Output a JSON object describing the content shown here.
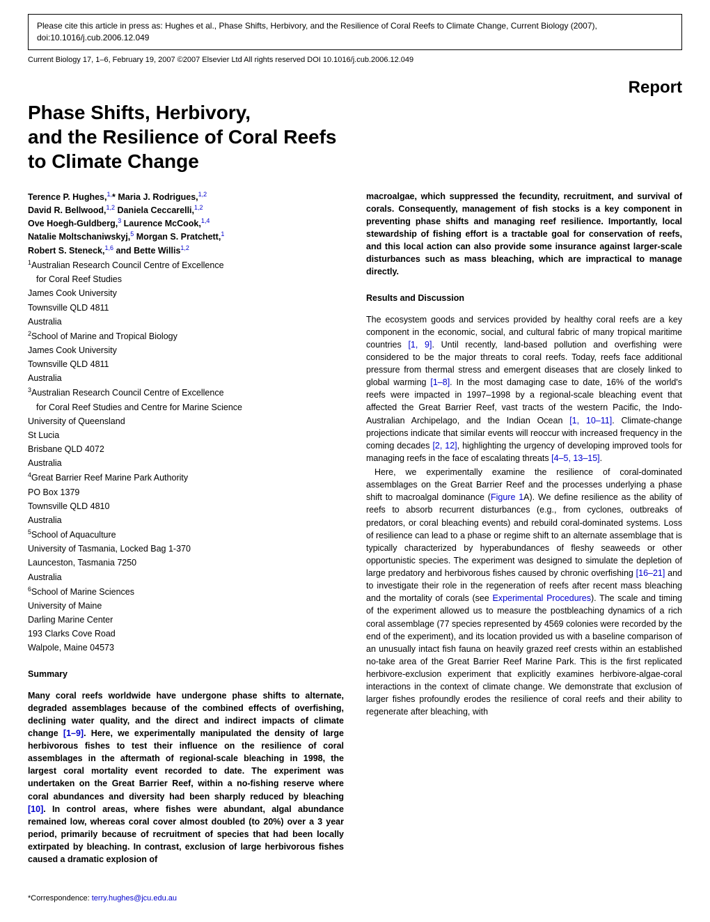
{
  "citation_box": "Please cite this article in press as: Hughes et al., Phase Shifts, Herbivory, and the Resilience of Coral Reefs to Climate Change, Current Biology (2007), doi:10.1016/j.cub.2006.12.049",
  "journal_line": "Current Biology 17, 1–6, February 19, 2007 ©2007 Elsevier Ltd All rights reserved   DOI 10.1016/j.cub.2006.12.049",
  "report_label": "Report",
  "title_line1": "Phase Shifts, Herbivory,",
  "title_line2": "and the Resilience of Coral Reefs",
  "title_line3": "to Climate Change",
  "authors": {
    "line1_a": "Terence P. Hughes,",
    "line1_sup": "1,",
    "line1_star": "*",
    "line1_b": " Maria J. Rodrigues,",
    "line1_sup2": "1,2",
    "line2_a": "David R. Bellwood,",
    "line2_sup": "1,2",
    "line2_b": " Daniela Ceccarelli,",
    "line2_sup2": "1,2",
    "line3_a": "Ove Hoegh-Guldberg,",
    "line3_sup": "3",
    "line3_b": " Laurence McCook,",
    "line3_sup2": "1,4",
    "line4_a": "Natalie Moltschaniwskyj,",
    "line4_sup": "5",
    "line4_b": " Morgan S. Pratchett,",
    "line4_sup2": "1",
    "line5_a": "Robert S. Steneck,",
    "line5_sup": "1,6",
    "line5_b": " and Bette Willis",
    "line5_sup2": "1,2"
  },
  "affiliations": [
    {
      "sup": "1",
      "text": "Australian Research Council Centre of Excellence",
      "indent": "  for Coral Reef Studies"
    },
    {
      "sup": "",
      "text": "James Cook University"
    },
    {
      "sup": "",
      "text": "Townsville QLD 4811"
    },
    {
      "sup": "",
      "text": "Australia"
    },
    {
      "sup": "2",
      "text": "School of Marine and Tropical Biology"
    },
    {
      "sup": "",
      "text": "James Cook University"
    },
    {
      "sup": "",
      "text": "Townsville QLD 4811"
    },
    {
      "sup": "",
      "text": "Australia"
    },
    {
      "sup": "3",
      "text": "Australian Research Council Centre of Excellence",
      "indent": "  for Coral Reef Studies and Centre for Marine Science"
    },
    {
      "sup": "",
      "text": "University of Queensland"
    },
    {
      "sup": "",
      "text": "St Lucia"
    },
    {
      "sup": "",
      "text": "Brisbane QLD 4072"
    },
    {
      "sup": "",
      "text": "Australia"
    },
    {
      "sup": "4",
      "text": "Great Barrier Reef Marine Park Authority"
    },
    {
      "sup": "",
      "text": "PO Box 1379"
    },
    {
      "sup": "",
      "text": "Townsville QLD 4810"
    },
    {
      "sup": "",
      "text": "Australia"
    },
    {
      "sup": "5",
      "text": "School of Aquaculture"
    },
    {
      "sup": "",
      "text": "University of Tasmania, Locked Bag 1-370"
    },
    {
      "sup": "",
      "text": "Launceston, Tasmania 7250"
    },
    {
      "sup": "",
      "text": "Australia"
    },
    {
      "sup": "6",
      "text": "School of Marine Sciences"
    },
    {
      "sup": "",
      "text": "University of Maine"
    },
    {
      "sup": "",
      "text": "Darling Marine Center"
    },
    {
      "sup": "",
      "text": "193 Clarks Cove Road"
    },
    {
      "sup": "",
      "text": "Walpole, Maine 04573"
    }
  ],
  "summary_head": "Summary",
  "summary_text_1": "Many coral reefs worldwide have undergone phase shifts to alternate, degraded assemblages because of the combined effects of overfishing, declining water quality, and the direct and indirect impacts of climate change ",
  "summary_ref_1": "[1–9]",
  "summary_text_2": ". Here, we experimentally manipulated the density of large herbivorous fishes to test their influence on the resilience of coral assemblages in the aftermath of regional-scale bleaching in 1998, the largest coral mortality event recorded to date. The experiment was undertaken on the Great Barrier Reef, within a no-fishing reserve where coral abundances and diversity had been sharply reduced by bleaching ",
  "summary_ref_2": "[10]",
  "summary_text_3": ". In control areas, where fishes were abundant, algal abundance remained low, whereas coral cover almost doubled (to 20%) over a 3 year period, primarily because of recruitment of species that had been locally extirpated by bleaching. In contrast, exclusion of large herbivorous fishes caused a dramatic explosion of",
  "correspondence_label": "*Correspondence: ",
  "correspondence_email": "terry.hughes@jcu.edu.au",
  "col2_top": "macroalgae, which suppressed the fecundity, recruitment, and survival of corals. Consequently, management of fish stocks is a key component in preventing phase shifts and managing reef resilience. Importantly, local stewardship of fishing effort is a tractable goal for conservation of reefs, and this local action can also provide some insurance against larger-scale disturbances such as mass bleaching, which are impractical to manage directly.",
  "results_head": "Results and Discussion",
  "results_p1_1": "The ecosystem goods and services provided by healthy coral reefs are a key component in the economic, social, and cultural fabric of many tropical maritime countries ",
  "results_p1_ref1": "[1, 9]",
  "results_p1_2": ". Until recently, land-based pollution and overfishing were considered to be the major threats to coral reefs. Today, reefs face additional pressure from thermal stress and emergent diseases that are closely linked to global warming ",
  "results_p1_ref2": "[1–8]",
  "results_p1_3": ". In the most damaging case to date, 16% of the world's reefs were impacted in 1997–1998 by a regional-scale bleaching event that affected the Great Barrier Reef, vast tracts of the western Pacific, the Indo-Australian Archipelago, and the Indian Ocean ",
  "results_p1_ref3": "[1, 10–11]",
  "results_p1_4": ". Climate-change projections indicate that similar events will reoccur with increased frequency in the coming decades ",
  "results_p1_ref4": "[2, 12]",
  "results_p1_5": ", highlighting the urgency of developing improved tools for managing reefs in the face of escalating threats ",
  "results_p1_ref5": "[4–5, 13–15]",
  "results_p1_6": ".",
  "results_p2_1": "Here, we experimentally examine the resilience of coral-dominated assemblages on the Great Barrier Reef and the processes underlying a phase shift to macroalgal dominance (",
  "results_p2_ref1": "Figure 1",
  "results_p2_2": "A). We define resilience as the ability of reefs to absorb recurrent disturbances (e.g., from cyclones, outbreaks of predators, or coral bleaching events) and rebuild coral-dominated systems. Loss of resilience can lead to a phase or regime shift to an alternate assemblage that is typically characterized by hyperabundances of fleshy seaweeds or other opportunistic species. The experiment was designed to simulate the depletion of large predatory and herbivorous fishes caused by chronic overfishing ",
  "results_p2_ref2": "[16–21]",
  "results_p2_3": " and to investigate their role in the regeneration of reefs after recent mass bleaching and the mortality of corals (see ",
  "results_p2_ref3": "Experimental Procedures",
  "results_p2_4": "). The scale and timing of the experiment allowed us to measure the postbleaching dynamics of a rich coral assemblage (77 species represented by 4569 colonies were recorded by the end of the experiment), and its location provided us with a baseline comparison of an unusually intact fish fauna on heavily grazed reef crests within an established no-take area of the Great Barrier Reef Marine Park. This is the first replicated herbivore-exclusion experiment that explicitly examines herbivore-algae-coral interactions in the context of climate change. We demonstrate that exclusion of larger fishes profoundly erodes the resilience of coral reefs and their ability to regenerate after bleaching, with"
}
